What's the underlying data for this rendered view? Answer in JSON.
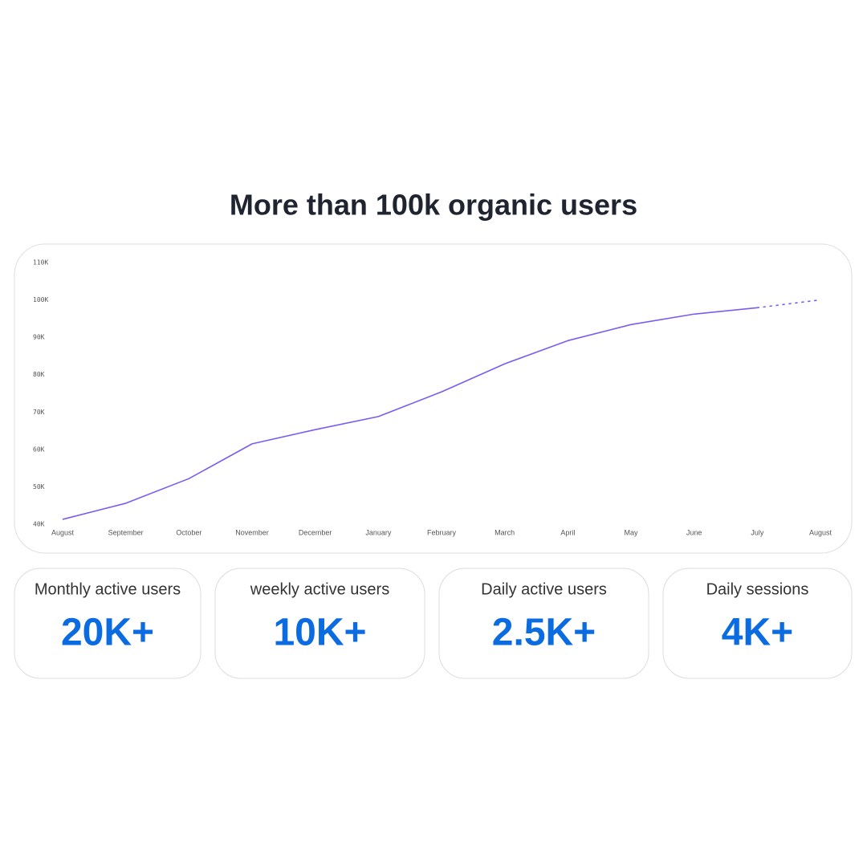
{
  "chart_data": {
    "type": "line",
    "title": "More than 100k organic users",
    "categories": [
      "August",
      "September",
      "October",
      "November",
      "December",
      "January",
      "February",
      "March",
      "April",
      "May",
      "June",
      "July",
      "August"
    ],
    "series": [
      {
        "color": "#7b5cf0",
        "style": "solid",
        "values": [
          41300,
          45600,
          52200,
          61500,
          65300,
          68800,
          75400,
          82900,
          89100,
          93400,
          96200,
          97900,
          null
        ]
      },
      {
        "color": "#7b5cf0",
        "style": "dotted",
        "values": [
          null,
          null,
          null,
          null,
          null,
          null,
          null,
          null,
          null,
          null,
          null,
          97900,
          100000
        ]
      }
    ],
    "ylim": [
      40000,
      110000
    ],
    "yticks": [
      {
        "value": 40000,
        "label": "40K"
      },
      {
        "value": 50000,
        "label": "50K"
      },
      {
        "value": 60000,
        "label": "60K"
      },
      {
        "value": 70000,
        "label": "70K"
      },
      {
        "value": 80000,
        "label": "80K"
      },
      {
        "value": 90000,
        "label": "90K"
      },
      {
        "value": 100000,
        "label": "100K"
      },
      {
        "value": 110000,
        "label": "110K"
      }
    ],
    "grid": false
  },
  "stats": [
    {
      "label": "Monthly active users",
      "value": "20K+"
    },
    {
      "label": "weekly active users",
      "value": "10K+"
    },
    {
      "label": "Daily active users",
      "value": "2.5K+"
    },
    {
      "label": "Daily sessions",
      "value": "4K+"
    }
  ]
}
